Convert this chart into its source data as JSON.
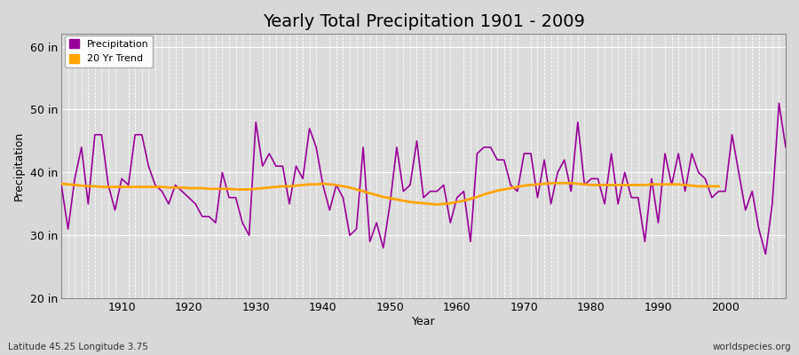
{
  "title": "Yearly Total Precipitation 1901 - 2009",
  "xlabel": "Year",
  "ylabel": "Precipitation",
  "bottom_left_label": "Latitude 45.25 Longitude 3.75",
  "bottom_right_label": "worldspecies.org",
  "ylim": [
    20,
    62
  ],
  "yticks": [
    20,
    30,
    40,
    50,
    60
  ],
  "ytick_labels": [
    "20 in",
    "30 in",
    "40 in",
    "50 in",
    "60 in"
  ],
  "years": [
    1901,
    1902,
    1903,
    1904,
    1905,
    1906,
    1907,
    1908,
    1909,
    1910,
    1911,
    1912,
    1913,
    1914,
    1915,
    1916,
    1917,
    1918,
    1919,
    1920,
    1921,
    1922,
    1923,
    1924,
    1925,
    1926,
    1927,
    1928,
    1929,
    1930,
    1931,
    1932,
    1933,
    1934,
    1935,
    1936,
    1937,
    1938,
    1939,
    1940,
    1941,
    1942,
    1943,
    1944,
    1945,
    1946,
    1947,
    1948,
    1949,
    1950,
    1951,
    1952,
    1953,
    1954,
    1955,
    1956,
    1957,
    1958,
    1959,
    1960,
    1961,
    1962,
    1963,
    1964,
    1965,
    1966,
    1967,
    1968,
    1969,
    1970,
    1971,
    1972,
    1973,
    1974,
    1975,
    1976,
    1977,
    1978,
    1979,
    1980,
    1981,
    1982,
    1983,
    1984,
    1985,
    1986,
    1987,
    1988,
    1989,
    1990,
    1991,
    1992,
    1993,
    1994,
    1995,
    1996,
    1997,
    1998,
    1999,
    2000,
    2001,
    2002,
    2003,
    2004,
    2005,
    2006,
    2007,
    2008,
    2009
  ],
  "precip": [
    38,
    31,
    39,
    44,
    35,
    46,
    46,
    38,
    34,
    39,
    38,
    46,
    46,
    41,
    38,
    37,
    35,
    38,
    37,
    36,
    35,
    33,
    33,
    32,
    40,
    36,
    36,
    32,
    30,
    48,
    41,
    43,
    41,
    41,
    35,
    41,
    39,
    47,
    44,
    38,
    34,
    38,
    36,
    30,
    31,
    44,
    29,
    32,
    28,
    35,
    44,
    37,
    38,
    45,
    36,
    37,
    37,
    38,
    32,
    36,
    37,
    29,
    43,
    44,
    44,
    42,
    42,
    38,
    37,
    43,
    43,
    36,
    42,
    35,
    40,
    42,
    37,
    48,
    38,
    39,
    39,
    35,
    43,
    35,
    40,
    36,
    36,
    29,
    39,
    32,
    43,
    38,
    43,
    37,
    43,
    40,
    39,
    36,
    37,
    37,
    46,
    40,
    34,
    37,
    31,
    27,
    35,
    51,
    44
  ],
  "trend": [
    38.2,
    38.1,
    38.0,
    37.9,
    37.8,
    37.8,
    37.7,
    37.7,
    37.7,
    37.7,
    37.7,
    37.7,
    37.7,
    37.7,
    37.7,
    37.7,
    37.6,
    37.6,
    37.6,
    37.5,
    37.5,
    37.5,
    37.4,
    37.4,
    37.4,
    37.4,
    37.3,
    37.3,
    37.3,
    37.4,
    37.5,
    37.6,
    37.7,
    37.8,
    37.8,
    37.9,
    38.0,
    38.1,
    38.1,
    38.2,
    38.1,
    38.0,
    37.8,
    37.6,
    37.3,
    37.0,
    36.7,
    36.4,
    36.1,
    35.9,
    35.7,
    35.5,
    35.3,
    35.2,
    35.1,
    35.0,
    34.9,
    35.0,
    35.1,
    35.3,
    35.5,
    35.8,
    36.1,
    36.5,
    36.8,
    37.1,
    37.3,
    37.5,
    37.7,
    37.9,
    38.0,
    38.1,
    38.2,
    38.3,
    38.3,
    38.3,
    38.3,
    38.2,
    38.1,
    38.0,
    38.0,
    38.0,
    38.0,
    38.0,
    38.0,
    38.0,
    38.0,
    38.0,
    38.1,
    38.1,
    38.1,
    38.1,
    38.1,
    38.0,
    37.9,
    37.8,
    37.8,
    37.8,
    37.8
  ],
  "precip_color": "#990099",
  "trend_color": "#FFA500",
  "bg_color": "#D8D8D8",
  "plot_bg_color": "#DCDCDC",
  "grid_color": "#FFFFFF",
  "legend_items": [
    "Precipitation",
    "20 Yr Trend"
  ],
  "legend_colors": [
    "#990099",
    "#FFA500"
  ],
  "title_fontsize": 14,
  "axis_label_fontsize": 9,
  "tick_fontsize": 9
}
